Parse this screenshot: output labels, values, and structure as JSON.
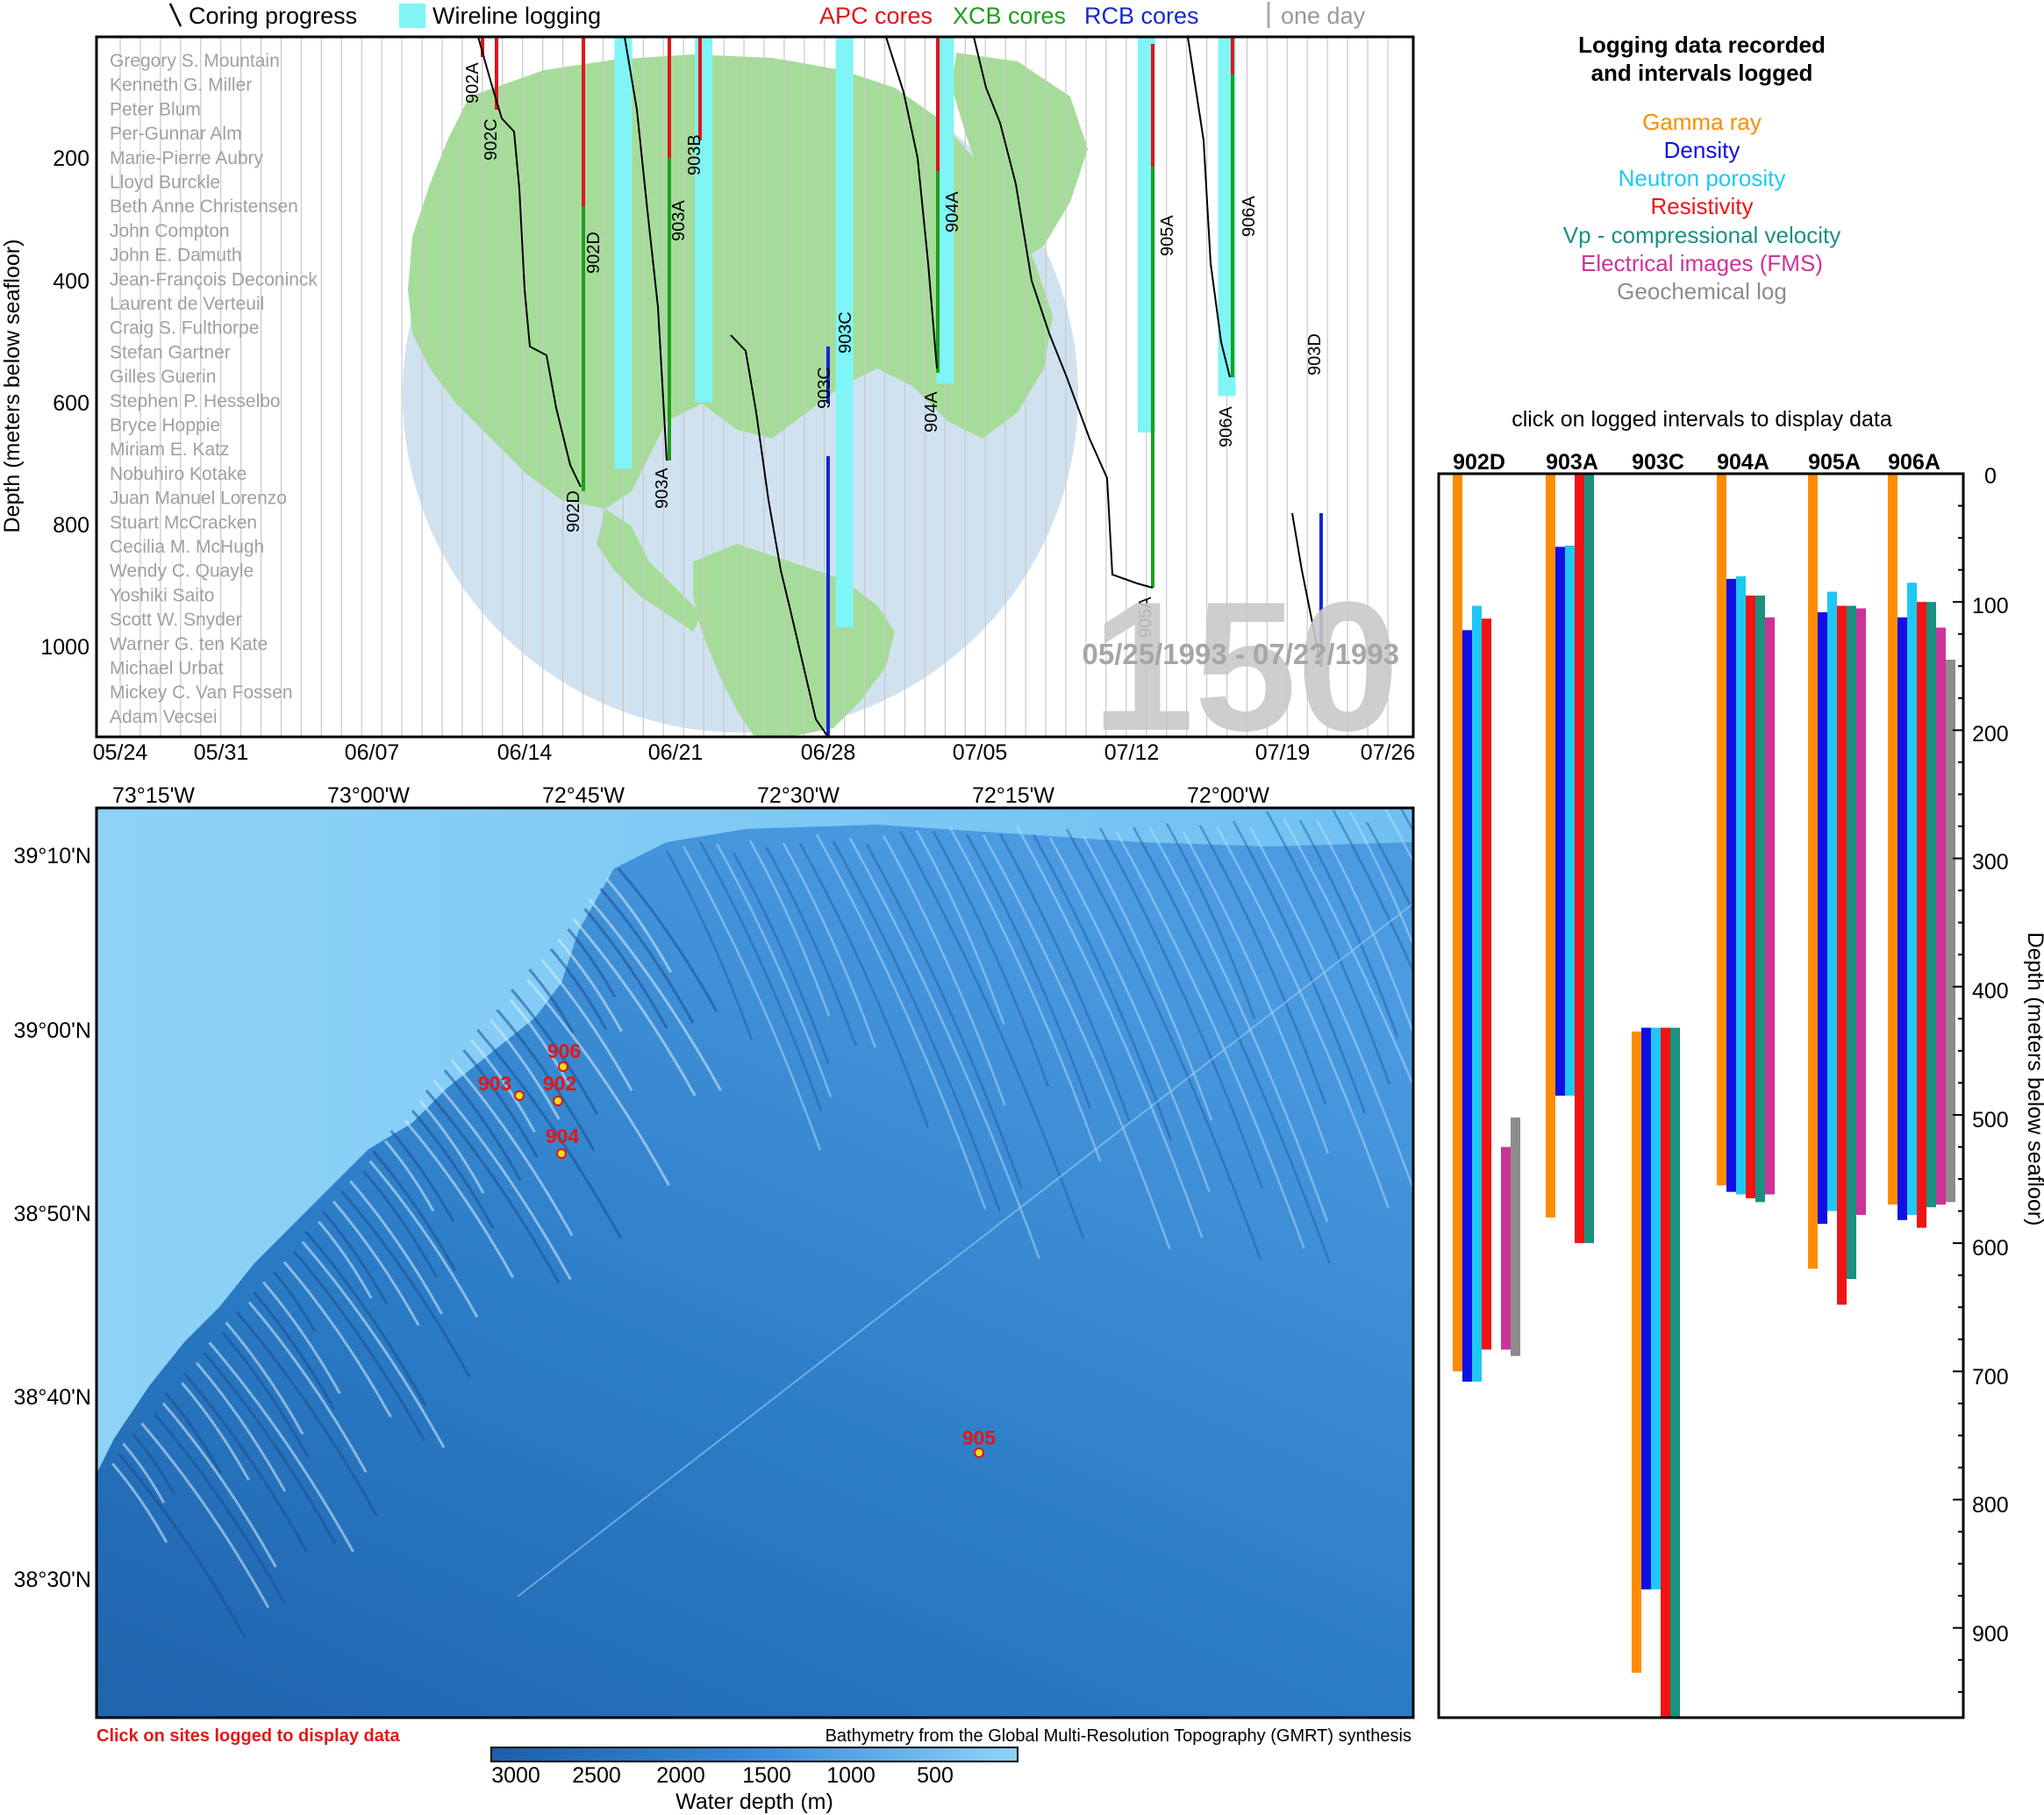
{
  "expedition": {
    "number": "150",
    "dates": "05/25/1993 - 07/2?/1993"
  },
  "legend": {
    "coring_progress": "Coring progress",
    "wireline_logging": "Wireline logging",
    "apc": "APC cores",
    "xcb": "XCB cores",
    "rcb": "RCB cores",
    "one_day": "one day"
  },
  "colors": {
    "apc": "#e0141c",
    "xcb": "#1e9e1e",
    "rcb": "#1428d2",
    "wireline": "#7ff5f5",
    "globe_ocean": "#d0e2f0",
    "globe_land": "#a6dc9a"
  },
  "timeline": {
    "ylabel": "Depth (meters below seafloor)",
    "y_ticks": [
      "200",
      "400",
      "600",
      "800",
      "1000"
    ],
    "x_ticks": [
      "05/24",
      "05/31",
      "06/07",
      "06/14",
      "06/21",
      "06/28",
      "07/05",
      "07/12",
      "07/19",
      "07/26"
    ],
    "hole_labels": [
      "902A",
      "902C",
      "903B",
      "902D",
      "903A",
      "904A",
      "904A",
      "903C",
      "903C",
      "905A",
      "905A",
      "906A",
      "906A",
      "903D",
      "902D",
      "903A"
    ]
  },
  "scientists": [
    "Gregory S. Mountain",
    "Kenneth G. Miller",
    "Peter Blum",
    "Per-Gunnar Alm",
    "Marie-Pierre Aubry",
    "Lloyd Burckle",
    "Beth Anne Christensen",
    "John Compton",
    "John E. Damuth",
    "Jean-François Deconinck",
    "Laurent de Verteuil",
    "Craig S. Fulthorpe",
    "Stefan Gartner",
    "Gilles Guerin",
    "Stephen P. Hesselbo",
    "Bryce Hoppie",
    "Miriam E. Katz",
    "Nobuhiro Kotake",
    "Juan Manuel Lorenzo",
    "Stuart McCracken",
    "Cecilia M. McHugh",
    "Wendy C. Quayle",
    "Yoshiki Saito",
    "Scott W. Snyder",
    "Warner G. ten Kate",
    "Michael Urbat",
    "Mickey C. Van Fossen",
    "Adam Vecsei"
  ],
  "logging": {
    "title_line1": "Logging data recorded",
    "title_line2": "and intervals logged",
    "types": [
      {
        "name": "Gamma ray",
        "color": "#ff8c00"
      },
      {
        "name": "Density",
        "color": "#1010e6"
      },
      {
        "name": "Neutron porosity",
        "color": "#1ec8f5"
      },
      {
        "name": "Resistivity",
        "color": "#f01414"
      },
      {
        "name": "Vp - compressional velocity",
        "color": "#1a9080"
      },
      {
        "name": "Electrical images (FMS)",
        "color": "#cc3399"
      },
      {
        "name": "Geochemical log",
        "color": "#8c8c8c"
      }
    ],
    "click_note": "click on logged intervals to display data",
    "ylabel": "Depth (meters below seafloor)",
    "y_ticks": [
      "0",
      "100",
      "200",
      "300",
      "400",
      "500",
      "600",
      "700",
      "800",
      "900"
    ]
  },
  "map": {
    "lon_ticks": [
      "73°15'W",
      "73°00'W",
      "72°45'W",
      "72°30'W",
      "72°15'W",
      "72°00'W"
    ],
    "lat_ticks": [
      "39°10'N",
      "39°00'N",
      "38°50'N",
      "38°40'N",
      "38°30'N"
    ],
    "sites": [
      "906",
      "903",
      "902",
      "904",
      "905"
    ],
    "click_note": "Click on sites logged to display data",
    "credit": "Bathymetry from the Global Multi-Resolution Topography (GMRT) synthesis",
    "colorbar_ticks": [
      "3000",
      "2500",
      "2000",
      "1500",
      "1000",
      "500"
    ],
    "colorbar_label": "Water depth (m)"
  },
  "chart_data": [
    {
      "type": "bar",
      "title": "Logging data recorded and intervals logged",
      "ylabel": "Depth (meters below seafloor)",
      "ylim": [
        0,
        970
      ],
      "y_inverted": true,
      "categories": [
        "902D",
        "903A",
        "903C",
        "904A",
        "905A",
        "906A"
      ],
      "series": [
        {
          "name": "Gamma ray",
          "intervals": [
            [
              0,
              700
            ],
            [
              0,
              580
            ],
            [
              435,
              935
            ],
            [
              0,
              555
            ],
            [
              0,
              620
            ],
            [
              0,
              570
            ]
          ]
        },
        {
          "name": "Density",
          "intervals": [
            [
              122,
              708
            ],
            [
              57,
              485
            ],
            [
              432,
              870
            ],
            [
              82,
              560
            ],
            [
              108,
              585
            ],
            [
              112,
              582
            ]
          ]
        },
        {
          "name": "Neutron porosity",
          "intervals": [
            [
              103,
              708
            ],
            [
              56,
              485
            ],
            [
              432,
              870
            ],
            [
              80,
              562
            ],
            [
              92,
              575
            ],
            [
              85,
              578
            ]
          ]
        },
        {
          "name": "Resistivity",
          "intervals": [
            [
              113,
              683
            ],
            [
              0,
              600
            ],
            [
              432,
              970
            ],
            [
              95,
              565
            ],
            [
              103,
              648
            ],
            [
              100,
              588
            ]
          ]
        },
        {
          "name": "Vp - compressional velocity",
          "intervals": [
            [
              null,
              null
            ],
            [
              0,
              600
            ],
            [
              432,
              970
            ],
            [
              95,
              568
            ],
            [
              103,
              628
            ],
            [
              100,
              572
            ]
          ]
        },
        {
          "name": "Electrical images (FMS)",
          "intervals": [
            [
              525,
              683
            ],
            [
              null,
              null
            ],
            [
              null,
              null
            ],
            [
              112,
              562
            ],
            [
              105,
              578
            ],
            [
              120,
              570
            ]
          ]
        },
        {
          "name": "Geochemical log",
          "intervals": [
            [
              502,
              688
            ],
            [
              null,
              null
            ],
            [
              null,
              null
            ],
            [
              null,
              null
            ],
            [
              null,
              null
            ],
            [
              145,
              568
            ]
          ]
        }
      ]
    },
    {
      "type": "bar",
      "title": "",
      "xlabel": "",
      "ylabel": "Depth (meters below seafloor)",
      "ylim": [
        0,
        1150
      ],
      "y_inverted": true,
      "x_range": [
        "05/24",
        "07/26"
      ],
      "series": [
        {
          "name": "Wireline logging",
          "bars": [
            {
              "x": "06/18",
              "depth": [
                0,
                710
              ]
            },
            {
              "x": "06/22",
              "depth": [
                0,
                600
              ]
            },
            {
              "x": "06/29",
              "depth": [
                0,
                970
              ]
            },
            {
              "x": "07/04",
              "depth": [
                0,
                570
              ]
            },
            {
              "x": "07/14",
              "depth": [
                0,
                650
              ]
            },
            {
              "x": "07/18",
              "depth": [
                0,
                590
              ]
            }
          ]
        }
      ]
    }
  ]
}
